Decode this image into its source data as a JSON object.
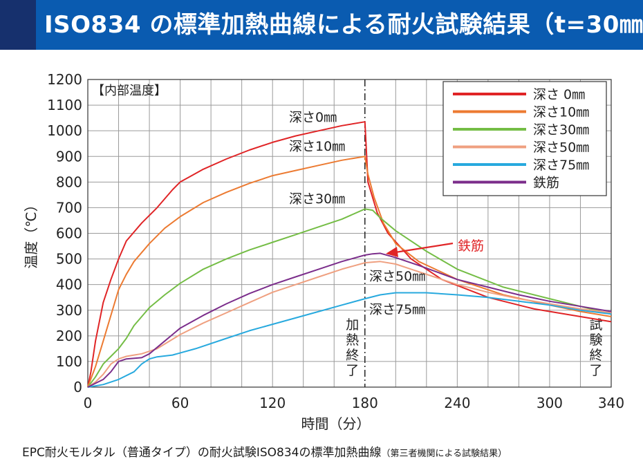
{
  "header": {
    "title": "ISO834 の標準加熱曲線による耐火試験結果（t=30㎜）",
    "colors": {
      "banner": "#0a5bb0",
      "strip": "#16306d"
    }
  },
  "caption": {
    "main": "EPC耐火モルタル（普通タイプ）の耐火試験ISO834の標準加熱曲線",
    "note": "（第三者機関による試験結果）"
  },
  "chart_data": {
    "type": "line",
    "inner_label": "【内部温度】",
    "xlabel": "時間（分）",
    "ylabel": "温度（℃）",
    "xlim": [
      0,
      340
    ],
    "ylim": [
      0,
      1200
    ],
    "xticks": [
      0,
      60,
      120,
      180,
      240,
      300,
      340
    ],
    "yticks": [
      0,
      100,
      200,
      300,
      400,
      500,
      600,
      700,
      800,
      900,
      1000,
      1100,
      1200
    ],
    "grid": true,
    "legend_position": "top-right",
    "vertical_markers": [
      {
        "x": 180,
        "label": "加熱終了"
      },
      {
        "x": 340,
        "label": "試験終了"
      }
    ],
    "series": [
      {
        "name": "深さ 0㎜",
        "color": "#e02426",
        "points": [
          [
            0,
            0
          ],
          [
            2,
            60
          ],
          [
            5,
            180
          ],
          [
            10,
            330
          ],
          [
            15,
            420
          ],
          [
            20,
            500
          ],
          [
            25,
            570
          ],
          [
            35,
            640
          ],
          [
            45,
            700
          ],
          [
            55,
            770
          ],
          [
            60,
            800
          ],
          [
            75,
            850
          ],
          [
            90,
            890
          ],
          [
            105,
            925
          ],
          [
            120,
            955
          ],
          [
            135,
            980
          ],
          [
            150,
            1000
          ],
          [
            165,
            1020
          ],
          [
            180,
            1035
          ],
          [
            182,
            800
          ],
          [
            188,
            680
          ],
          [
            195,
            600
          ],
          [
            210,
            500
          ],
          [
            230,
            420
          ],
          [
            260,
            350
          ],
          [
            290,
            305
          ],
          [
            320,
            275
          ],
          [
            340,
            255
          ]
        ]
      },
      {
        "name": "深さ10㎜",
        "color": "#ec7a31",
        "points": [
          [
            0,
            0
          ],
          [
            5,
            80
          ],
          [
            10,
            180
          ],
          [
            15,
            280
          ],
          [
            20,
            380
          ],
          [
            25,
            440
          ],
          [
            30,
            490
          ],
          [
            40,
            560
          ],
          [
            50,
            620
          ],
          [
            60,
            665
          ],
          [
            75,
            720
          ],
          [
            90,
            760
          ],
          [
            105,
            795
          ],
          [
            120,
            825
          ],
          [
            135,
            845
          ],
          [
            150,
            865
          ],
          [
            165,
            885
          ],
          [
            180,
            900
          ],
          [
            182,
            830
          ],
          [
            186,
            740
          ],
          [
            192,
            640
          ],
          [
            200,
            560
          ],
          [
            215,
            490
          ],
          [
            240,
            420
          ],
          [
            270,
            360
          ],
          [
            300,
            320
          ],
          [
            320,
            295
          ],
          [
            340,
            275
          ]
        ]
      },
      {
        "name": "深さ30㎜",
        "color": "#74bd45",
        "points": [
          [
            0,
            0
          ],
          [
            5,
            40
          ],
          [
            10,
            90
          ],
          [
            15,
            120
          ],
          [
            20,
            150
          ],
          [
            25,
            190
          ],
          [
            30,
            240
          ],
          [
            40,
            310
          ],
          [
            50,
            360
          ],
          [
            60,
            405
          ],
          [
            75,
            460
          ],
          [
            90,
            500
          ],
          [
            105,
            535
          ],
          [
            120,
            565
          ],
          [
            135,
            595
          ],
          [
            150,
            625
          ],
          [
            165,
            655
          ],
          [
            180,
            695
          ],
          [
            185,
            690
          ],
          [
            190,
            660
          ],
          [
            200,
            610
          ],
          [
            220,
            530
          ],
          [
            240,
            460
          ],
          [
            270,
            390
          ],
          [
            300,
            345
          ],
          [
            320,
            315
          ],
          [
            340,
            285
          ]
        ]
      },
      {
        "name": "深さ50㎜",
        "color": "#efa080",
        "points": [
          [
            0,
            0
          ],
          [
            5,
            20
          ],
          [
            10,
            50
          ],
          [
            15,
            90
          ],
          [
            20,
            110
          ],
          [
            25,
            120
          ],
          [
            30,
            125
          ],
          [
            35,
            130
          ],
          [
            45,
            150
          ],
          [
            60,
            205
          ],
          [
            75,
            250
          ],
          [
            90,
            290
          ],
          [
            105,
            330
          ],
          [
            120,
            370
          ],
          [
            135,
            400
          ],
          [
            150,
            430
          ],
          [
            165,
            460
          ],
          [
            180,
            485
          ],
          [
            190,
            490
          ],
          [
            200,
            480
          ],
          [
            210,
            460
          ],
          [
            225,
            430
          ],
          [
            240,
            400
          ],
          [
            260,
            370
          ],
          [
            280,
            345
          ],
          [
            300,
            325
          ],
          [
            320,
            305
          ],
          [
            340,
            290
          ]
        ]
      },
      {
        "name": "深さ75㎜",
        "color": "#27a9de",
        "points": [
          [
            0,
            0
          ],
          [
            10,
            10
          ],
          [
            20,
            30
          ],
          [
            30,
            60
          ],
          [
            35,
            90
          ],
          [
            40,
            110
          ],
          [
            45,
            118
          ],
          [
            55,
            125
          ],
          [
            70,
            150
          ],
          [
            90,
            190
          ],
          [
            105,
            220
          ],
          [
            120,
            245
          ],
          [
            135,
            270
          ],
          [
            150,
            295
          ],
          [
            165,
            320
          ],
          [
            180,
            345
          ],
          [
            190,
            360
          ],
          [
            200,
            368
          ],
          [
            220,
            368
          ],
          [
            240,
            360
          ],
          [
            260,
            350
          ],
          [
            280,
            335
          ],
          [
            300,
            320
          ],
          [
            320,
            300
          ],
          [
            340,
            285
          ]
        ]
      },
      {
        "name": "鉄筋",
        "color": "#7b2d8b",
        "points": [
          [
            0,
            0
          ],
          [
            10,
            30
          ],
          [
            15,
            60
          ],
          [
            20,
            100
          ],
          [
            25,
            110
          ],
          [
            35,
            115
          ],
          [
            40,
            130
          ],
          [
            50,
            180
          ],
          [
            60,
            230
          ],
          [
            75,
            280
          ],
          [
            90,
            325
          ],
          [
            105,
            365
          ],
          [
            120,
            400
          ],
          [
            135,
            430
          ],
          [
            150,
            460
          ],
          [
            165,
            490
          ],
          [
            180,
            515
          ],
          [
            185,
            520
          ],
          [
            190,
            522
          ],
          [
            200,
            505
          ],
          [
            215,
            475
          ],
          [
            240,
            420
          ],
          [
            260,
            390
          ],
          [
            280,
            360
          ],
          [
            300,
            335
          ],
          [
            320,
            315
          ],
          [
            340,
            295
          ]
        ]
      }
    ],
    "annotations": [
      {
        "text": "深さ0㎜",
        "series": "深さ 0㎜"
      },
      {
        "text": "深さ10㎜",
        "series": "深さ10㎜"
      },
      {
        "text": "深さ30㎜",
        "series": "深さ30㎜"
      },
      {
        "text": "深さ50㎜",
        "series": "深さ50㎜"
      },
      {
        "text": "深さ75㎜",
        "series": "深さ75㎜"
      },
      {
        "text": "鉄筋",
        "series": "鉄筋",
        "arrow": true,
        "color": "#e02426"
      }
    ]
  }
}
